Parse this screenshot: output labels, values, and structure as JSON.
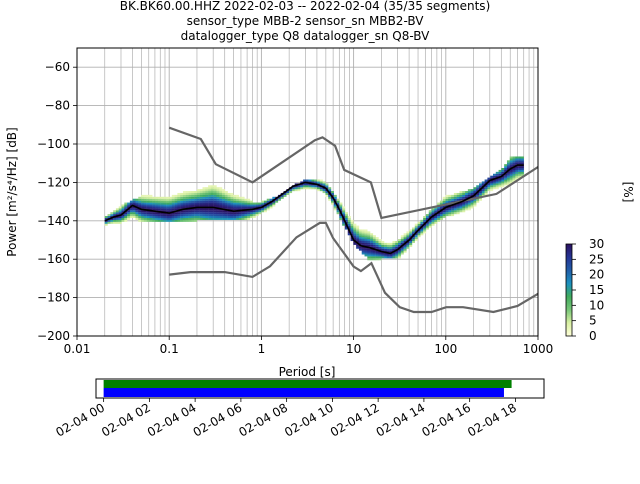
{
  "title_lines": [
    "BK.BK60.00.HHZ   2022-02-03 -- 2022-02-04  (35/35 segments)",
    "sensor_type MBB-2 sensor_sn MBB2-BV",
    "datalogger_type Q8 datalogger_sn Q8-BV"
  ],
  "colors": {
    "grid": "#b0b0b0",
    "model_lines": "#666666",
    "mode_line": "#000000",
    "coverage_data": "#008000",
    "coverage_gaps": "#0000ff",
    "cmap": [
      "#ffffd9",
      "#d9f0a3",
      "#78c679",
      "#41ab5d",
      "#1d91c0",
      "#225ea8",
      "#253494",
      "#2c115f"
    ]
  },
  "chart_data": [
    {
      "type": "heatmap",
      "subtype": "ppsd",
      "xlabel": "Period [s]",
      "ylabel": "Power [m²/s⁴/Hz] [dB]",
      "xscale": "log",
      "xlim": [
        0.01,
        1000
      ],
      "ylim": [
        -200,
        -50
      ],
      "x_ticks": [
        0.01,
        0.1,
        1,
        10,
        100,
        1000
      ],
      "x_tick_labels": [
        "0.01",
        "0.1",
        "1",
        "10",
        "100",
        "1000"
      ],
      "y_ticks": [
        -200,
        -180,
        -160,
        -140,
        -120,
        -100,
        -80,
        -60
      ],
      "y_tick_labels": [
        "−200",
        "−180",
        "−160",
        "−140",
        "−120",
        "−100",
        "−80",
        "−60"
      ],
      "grid": true,
      "colorbar": {
        "label": "[%]",
        "range": [
          0,
          30
        ],
        "ticks": [
          0,
          5,
          10,
          15,
          20,
          25,
          30
        ],
        "tick_labels": [
          "0",
          "5",
          "10",
          "15",
          "20",
          "25",
          "30"
        ]
      },
      "noise_models": {
        "nhnm": {
          "x": [
            0.1,
            0.22,
            0.32,
            0.8,
            3.8,
            4.6,
            6.3,
            7.9,
            15.4,
            20,
            354.8,
            1000
          ],
          "y": [
            -91.5,
            -97.4,
            -110.5,
            -120,
            -98,
            -96.5,
            -101,
            -113.5,
            -120,
            -138.5,
            -126,
            -112
          ]
        },
        "nlnm": {
          "x": [
            0.1,
            0.17,
            0.4,
            0.8,
            1.24,
            2.4,
            4.3,
            5.0,
            6.0,
            10.0,
            12.0,
            15.6,
            21.9,
            31.6,
            45,
            70,
            101,
            154,
            328,
            600,
            1000
          ],
          "y": [
            -168,
            -166.7,
            -166.7,
            -169.2,
            -163.7,
            -148.6,
            -141.1,
            -141.1,
            -149,
            -163.8,
            -166.2,
            -162.1,
            -177.5,
            -185,
            -187.5,
            -187.5,
            -185,
            -185,
            -187.5,
            -184.4,
            -178
          ]
        }
      },
      "mode": {
        "x": [
          0.02,
          0.025,
          0.03,
          0.04,
          0.05,
          0.07,
          0.1,
          0.14,
          0.2,
          0.3,
          0.5,
          0.8,
          1.0,
          1.3,
          1.7,
          2.2,
          3.0,
          4.0,
          5.0,
          6.0,
          7.0,
          8.0,
          10,
          12,
          15,
          20,
          25,
          30,
          40,
          50,
          70,
          100,
          150,
          200,
          300,
          400,
          500,
          600,
          700
        ],
        "y": [
          -140,
          -138,
          -137,
          -132,
          -134,
          -135,
          -136,
          -134,
          -133,
          -133,
          -135,
          -134,
          -133,
          -130,
          -126,
          -122,
          -120,
          -121,
          -123,
          -128,
          -134,
          -140,
          -150,
          -153,
          -154,
          -156,
          -157,
          -155,
          -150,
          -145,
          -138,
          -133,
          -130,
          -127,
          -119,
          -117,
          -113,
          -111,
          -111
        ]
      },
      "spread": {
        "x": [
          0.02,
          0.03,
          0.05,
          0.1,
          0.2,
          0.3,
          0.5,
          0.8,
          1.0,
          1.5,
          2,
          3,
          4,
          5,
          7,
          10,
          15,
          20,
          30,
          50,
          100,
          200,
          300,
          400,
          500,
          700
        ],
        "upper": [
          -139,
          -133,
          -128,
          -127,
          -125,
          -121,
          -126,
          -131,
          -131,
          -128,
          -124,
          -119,
          -119,
          -121,
          -130,
          -138,
          -147,
          -151,
          -151,
          -142,
          -128,
          -124,
          -118,
          -114,
          -108,
          -107
        ],
        "lower": [
          -142,
          -140,
          -139,
          -140,
          -139,
          -139,
          -139,
          -138,
          -136,
          -132,
          -128,
          -124,
          -123,
          -126,
          -137,
          -151,
          -160,
          -159,
          -159,
          -148,
          -137,
          -133,
          -126,
          -122,
          -120,
          -117
        ]
      }
    },
    {
      "type": "coverage",
      "xlim": [
        "02-03 23:40",
        "02-04 19:15"
      ],
      "tick_labels": [
        "02-04 00",
        "02-04 02",
        "02-04 04",
        "02-04 06",
        "02-04 08",
        "02-04 10",
        "02-04 12",
        "02-04 14",
        "02-04 16",
        "02-04 18"
      ],
      "data_bar": [
        "02-04 00:00",
        "02-04 17:50"
      ],
      "gap_bar": [
        "02-04 00:00",
        "02-04 17:30"
      ]
    }
  ]
}
